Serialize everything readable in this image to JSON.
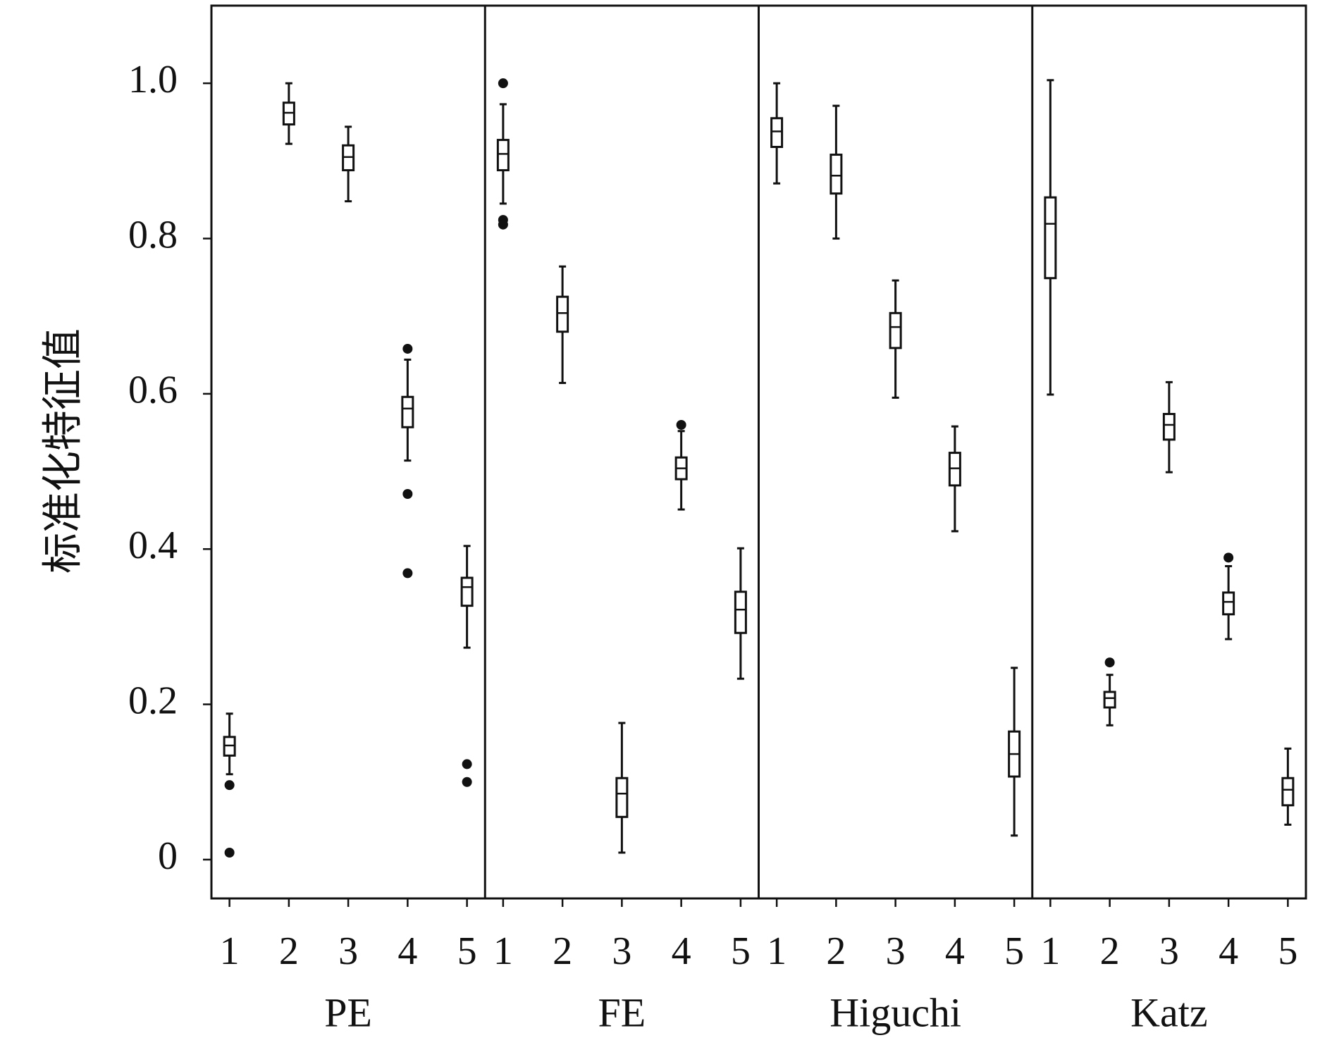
{
  "chart_data": {
    "type": "box",
    "ylabel": "标准化特征值",
    "ylim": [
      -0.05,
      1.1
    ],
    "yticks": [
      0,
      0.2,
      0.4,
      0.6,
      0.8,
      {
        "value": 1,
        "label": "1.0"
      }
    ],
    "color": "#111111",
    "panels": [
      {
        "name": "PE",
        "categories": [
          "1",
          "2",
          "3",
          "4",
          "5"
        ],
        "boxes": [
          {
            "whisker_low": 0.11,
            "q1": 0.134,
            "median": 0.147,
            "q3": 0.158,
            "whisker_high": 0.188,
            "outliers": [
              0.096,
              0.009
            ]
          },
          {
            "whisker_low": 0.922,
            "q1": 0.947,
            "median": 0.962,
            "q3": 0.975,
            "whisker_high": 1.0,
            "outliers": []
          },
          {
            "whisker_low": 0.848,
            "q1": 0.888,
            "median": 0.905,
            "q3": 0.92,
            "whisker_high": 0.944,
            "outliers": []
          },
          {
            "whisker_low": 0.514,
            "q1": 0.557,
            "median": 0.581,
            "q3": 0.596,
            "whisker_high": 0.644,
            "outliers": [
              0.658,
              0.471,
              0.369
            ]
          },
          {
            "whisker_low": 0.273,
            "q1": 0.327,
            "median": 0.351,
            "q3": 0.363,
            "whisker_high": 0.404,
            "outliers": [
              0.123,
              0.1
            ]
          }
        ]
      },
      {
        "name": "FE",
        "categories": [
          "1",
          "2",
          "3",
          "4",
          "5"
        ],
        "boxes": [
          {
            "whisker_low": 0.845,
            "q1": 0.888,
            "median": 0.909,
            "q3": 0.927,
            "whisker_high": 0.973,
            "outliers": [
              1.0,
              0.824,
              0.818
            ]
          },
          {
            "whisker_low": 0.614,
            "q1": 0.68,
            "median": 0.704,
            "q3": 0.725,
            "whisker_high": 0.764,
            "outliers": []
          },
          {
            "whisker_low": 0.009,
            "q1": 0.055,
            "median": 0.085,
            "q3": 0.105,
            "whisker_high": 0.176,
            "outliers": []
          },
          {
            "whisker_low": 0.451,
            "q1": 0.49,
            "median": 0.504,
            "q3": 0.518,
            "whisker_high": 0.552,
            "outliers": [
              0.56
            ]
          },
          {
            "whisker_low": 0.233,
            "q1": 0.292,
            "median": 0.322,
            "q3": 0.345,
            "whisker_high": 0.401,
            "outliers": []
          }
        ]
      },
      {
        "name": "Higuchi",
        "categories": [
          "1",
          "2",
          "3",
          "4",
          "5"
        ],
        "boxes": [
          {
            "whisker_low": 0.871,
            "q1": 0.918,
            "median": 0.938,
            "q3": 0.955,
            "whisker_high": 1.0,
            "outliers": []
          },
          {
            "whisker_low": 0.8,
            "q1": 0.858,
            "median": 0.881,
            "q3": 0.908,
            "whisker_high": 0.971,
            "outliers": []
          },
          {
            "whisker_low": 0.595,
            "q1": 0.659,
            "median": 0.686,
            "q3": 0.704,
            "whisker_high": 0.746,
            "outliers": []
          },
          {
            "whisker_low": 0.423,
            "q1": 0.482,
            "median": 0.504,
            "q3": 0.524,
            "whisker_high": 0.558,
            "outliers": []
          },
          {
            "whisker_low": 0.031,
            "q1": 0.107,
            "median": 0.136,
            "q3": 0.165,
            "whisker_high": 0.247,
            "outliers": []
          }
        ]
      },
      {
        "name": "Katz",
        "categories": [
          "1",
          "2",
          "3",
          "4",
          "5"
        ],
        "boxes": [
          {
            "whisker_low": 0.599,
            "q1": 0.749,
            "median": 0.819,
            "q3": 0.853,
            "whisker_high": 1.004,
            "outliers": []
          },
          {
            "whisker_low": 0.173,
            "q1": 0.196,
            "median": 0.208,
            "q3": 0.216,
            "whisker_high": 0.238,
            "outliers": [
              0.254
            ]
          },
          {
            "whisker_low": 0.499,
            "q1": 0.541,
            "median": 0.56,
            "q3": 0.574,
            "whisker_high": 0.615,
            "outliers": []
          },
          {
            "whisker_low": 0.284,
            "q1": 0.316,
            "median": 0.332,
            "q3": 0.344,
            "whisker_high": 0.378,
            "outliers": [
              0.389
            ]
          },
          {
            "whisker_low": 0.045,
            "q1": 0.07,
            "median": 0.09,
            "q3": 0.105,
            "whisker_high": 0.143,
            "outliers": []
          }
        ]
      }
    ]
  }
}
